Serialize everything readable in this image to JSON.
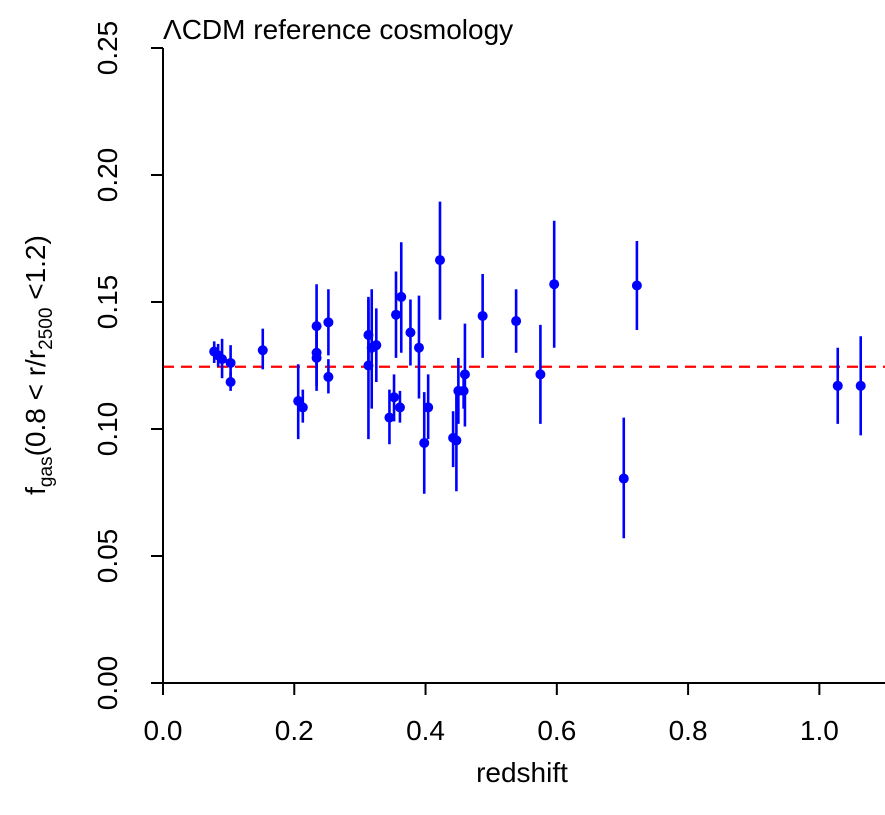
{
  "chart_data": {
    "type": "scatter",
    "title": "ΛCDM reference cosmology",
    "xlabel": "redshift",
    "ylabel": {
      "f": "f",
      "gas": "gas",
      "mid": "(0.8 < r/r",
      "r2500": "2500",
      "end": " <1.2)"
    },
    "xlim": [
      0.0,
      1.1
    ],
    "ylim": [
      0.0,
      0.25
    ],
    "x_ticks": [
      "0.0",
      "0.2",
      "0.4",
      "0.6",
      "0.8",
      "1.0"
    ],
    "y_ticks": [
      "0.00",
      "0.05",
      "0.10",
      "0.15",
      "0.20",
      "0.25"
    ],
    "reference_line": {
      "y": 0.1245,
      "color": "#ff0000",
      "style": "dashed"
    },
    "marker_color": "#0000ff",
    "points": [
      {
        "x": 0.078,
        "y": 0.1305,
        "lo": 0.126,
        "hi": 0.1345
      },
      {
        "x": 0.084,
        "y": 0.129,
        "lo": 0.1245,
        "hi": 0.1335
      },
      {
        "x": 0.09,
        "y": 0.1275,
        "lo": 0.12,
        "hi": 0.1355
      },
      {
        "x": 0.103,
        "y": 0.126,
        "lo": 0.119,
        "hi": 0.133
      },
      {
        "x": 0.103,
        "y": 0.1185,
        "lo": 0.115,
        "hi": 0.1225
      },
      {
        "x": 0.152,
        "y": 0.131,
        "lo": 0.1235,
        "hi": 0.1395
      },
      {
        "x": 0.206,
        "y": 0.111,
        "lo": 0.096,
        "hi": 0.1255
      },
      {
        "x": 0.213,
        "y": 0.1085,
        "lo": 0.1025,
        "hi": 0.1155
      },
      {
        "x": 0.234,
        "y": 0.1405,
        "lo": 0.124,
        "hi": 0.157
      },
      {
        "x": 0.234,
        "y": 0.13,
        "lo": 0.117,
        "hi": 0.143
      },
      {
        "x": 0.234,
        "y": 0.128,
        "lo": 0.115,
        "hi": 0.14
      },
      {
        "x": 0.252,
        "y": 0.142,
        "lo": 0.129,
        "hi": 0.155
      },
      {
        "x": 0.252,
        "y": 0.1205,
        "lo": 0.114,
        "hi": 0.1275
      },
      {
        "x": 0.313,
        "y": 0.137,
        "lo": 0.125,
        "hi": 0.151
      },
      {
        "x": 0.313,
        "y": 0.125,
        "lo": 0.096,
        "hi": 0.152
      },
      {
        "x": 0.318,
        "y": 0.132,
        "lo": 0.108,
        "hi": 0.155
      },
      {
        "x": 0.325,
        "y": 0.133,
        "lo": 0.1185,
        "hi": 0.1475
      },
      {
        "x": 0.345,
        "y": 0.1045,
        "lo": 0.094,
        "hi": 0.1155
      },
      {
        "x": 0.352,
        "y": 0.1125,
        "lo": 0.103,
        "hi": 0.1215
      },
      {
        "x": 0.355,
        "y": 0.145,
        "lo": 0.128,
        "hi": 0.162
      },
      {
        "x": 0.361,
        "y": 0.1085,
        "lo": 0.1025,
        "hi": 0.115
      },
      {
        "x": 0.363,
        "y": 0.152,
        "lo": 0.13,
        "hi": 0.1735
      },
      {
        "x": 0.377,
        "y": 0.138,
        "lo": 0.125,
        "hi": 0.151
      },
      {
        "x": 0.39,
        "y": 0.132,
        "lo": 0.112,
        "hi": 0.1525
      },
      {
        "x": 0.398,
        "y": 0.0945,
        "lo": 0.0745,
        "hi": 0.1145
      },
      {
        "x": 0.404,
        "y": 0.1085,
        "lo": 0.096,
        "hi": 0.1215
      },
      {
        "x": 0.422,
        "y": 0.1665,
        "lo": 0.143,
        "hi": 0.1895
      },
      {
        "x": 0.442,
        "y": 0.0965,
        "lo": 0.085,
        "hi": 0.107
      },
      {
        "x": 0.447,
        "y": 0.0955,
        "lo": 0.0755,
        "hi": 0.115
      },
      {
        "x": 0.45,
        "y": 0.115,
        "lo": 0.102,
        "hi": 0.128
      },
      {
        "x": 0.458,
        "y": 0.115,
        "lo": 0.108,
        "hi": 0.122
      },
      {
        "x": 0.46,
        "y": 0.1215,
        "lo": 0.101,
        "hi": 0.1415
      },
      {
        "x": 0.487,
        "y": 0.1445,
        "lo": 0.128,
        "hi": 0.161
      },
      {
        "x": 0.538,
        "y": 0.1425,
        "lo": 0.13,
        "hi": 0.155
      },
      {
        "x": 0.575,
        "y": 0.1215,
        "lo": 0.102,
        "hi": 0.141
      },
      {
        "x": 0.596,
        "y": 0.157,
        "lo": 0.132,
        "hi": 0.182
      },
      {
        "x": 0.702,
        "y": 0.0805,
        "lo": 0.057,
        "hi": 0.1045
      },
      {
        "x": 0.722,
        "y": 0.1565,
        "lo": 0.139,
        "hi": 0.174
      },
      {
        "x": 1.028,
        "y": 0.117,
        "lo": 0.102,
        "hi": 0.132
      },
      {
        "x": 1.063,
        "y": 0.117,
        "lo": 0.0975,
        "hi": 0.1365
      }
    ]
  }
}
